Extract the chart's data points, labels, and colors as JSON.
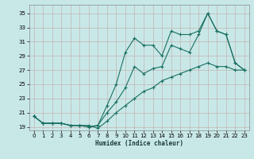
{
  "xlabel": "Humidex (Indice chaleur)",
  "bg_color": "#c8e8e8",
  "grid_color": "#c4b4b0",
  "line_color": "#1a7060",
  "xlim": [
    -0.5,
    23.5
  ],
  "ylim": [
    18.5,
    36.2
  ],
  "xticks": [
    0,
    1,
    2,
    3,
    4,
    5,
    6,
    7,
    8,
    9,
    10,
    11,
    12,
    13,
    14,
    15,
    16,
    17,
    18,
    19,
    20,
    21,
    22,
    23
  ],
  "yticks": [
    19,
    21,
    23,
    25,
    27,
    29,
    31,
    33,
    35
  ],
  "line1_x": [
    0,
    1,
    2,
    3,
    4,
    5,
    6,
    7,
    8,
    9,
    10,
    11,
    12,
    13,
    14,
    15,
    16,
    17,
    18,
    19,
    20,
    21,
    22,
    23
  ],
  "line1_y": [
    20.5,
    19.5,
    19.5,
    19.5,
    19.2,
    19.2,
    19.0,
    19.2,
    22.0,
    25.0,
    29.5,
    31.5,
    30.5,
    30.5,
    29.0,
    32.5,
    32.0,
    32.0,
    32.5,
    35.0,
    32.5,
    32.0,
    28.0,
    27.0
  ],
  "line2_x": [
    0,
    1,
    2,
    3,
    4,
    5,
    6,
    7,
    8,
    9,
    10,
    11,
    12,
    13,
    14,
    15,
    16,
    17,
    18,
    19,
    20,
    21,
    22,
    23
  ],
  "line2_y": [
    20.5,
    19.5,
    19.5,
    19.5,
    19.2,
    19.2,
    19.0,
    19.2,
    21.0,
    22.5,
    24.5,
    27.5,
    26.5,
    27.2,
    27.5,
    30.5,
    30.0,
    29.5,
    32.0,
    35.0,
    32.5,
    32.0,
    28.0,
    27.0
  ],
  "line3_x": [
    0,
    1,
    2,
    3,
    4,
    5,
    6,
    7,
    8,
    9,
    10,
    11,
    12,
    13,
    14,
    15,
    16,
    17,
    18,
    19,
    20,
    21,
    22,
    23
  ],
  "line3_y": [
    20.5,
    19.5,
    19.5,
    19.5,
    19.2,
    19.2,
    19.2,
    18.8,
    19.8,
    21.0,
    22.0,
    23.0,
    24.0,
    24.5,
    25.5,
    26.0,
    26.5,
    27.0,
    27.5,
    28.0,
    27.5,
    27.5,
    27.0,
    27.0
  ]
}
